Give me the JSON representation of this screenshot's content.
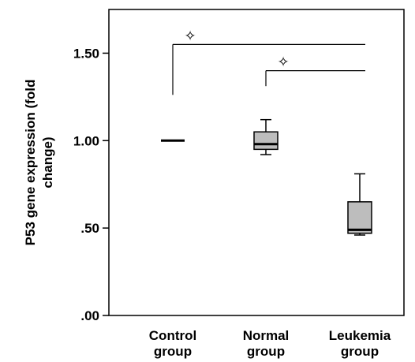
{
  "chart_data": {
    "type": "boxplot",
    "ylabel_lines": [
      "P53 gene expression (fold",
      "change)"
    ],
    "xlabel": "",
    "ylim": [
      0,
      1.75
    ],
    "yticks": [
      0,
      0.5,
      1.0,
      1.5
    ],
    "ytick_labels": [
      ".00",
      ".50",
      "1.00",
      "1.50"
    ],
    "categories": [
      {
        "lines": [
          "Control",
          "group"
        ]
      },
      {
        "lines": [
          "Normal",
          "group"
        ]
      },
      {
        "lines": [
          "Leukemia",
          "group"
        ]
      }
    ],
    "boxes": [
      {
        "min": 1.0,
        "q1": 1.0,
        "median": 1.0,
        "q3": 1.0,
        "max": 1.0
      },
      {
        "min": 0.92,
        "q1": 0.95,
        "median": 0.98,
        "q3": 1.05,
        "max": 1.12
      },
      {
        "min": 0.46,
        "q1": 0.47,
        "median": 0.49,
        "q3": 0.65,
        "max": 0.81
      }
    ],
    "box_fill": "#bdbdbd",
    "significance": [
      {
        "from": 0,
        "to": 2,
        "y": 1.55,
        "marker": "✧"
      },
      {
        "from": 1,
        "to": 2,
        "y": 1.4,
        "marker": "✧"
      }
    ],
    "grid": false,
    "legend": "none"
  }
}
